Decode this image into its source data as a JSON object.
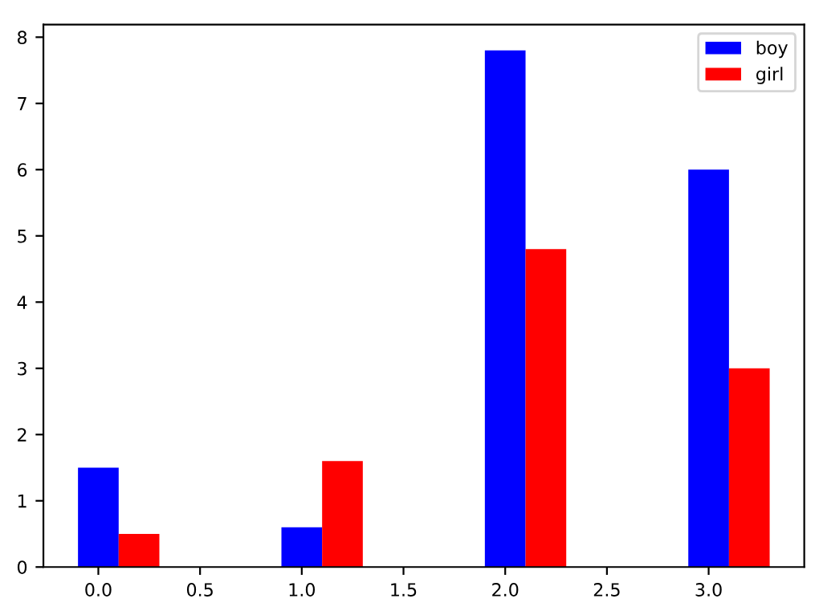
{
  "chart_data": {
    "type": "bar",
    "series": [
      {
        "name": "boy",
        "color": "#0000ff",
        "x": [
          0,
          1,
          2,
          3
        ],
        "values": [
          1.5,
          0.6,
          7.8,
          6
        ]
      },
      {
        "name": "girl",
        "color": "#ff0000",
        "x": [
          0.2,
          1.2,
          2.2,
          3.2
        ],
        "values": [
          0.5,
          1.6,
          4.8,
          3
        ]
      }
    ],
    "xlim": [
      -0.27,
      3.47
    ],
    "xticks": [
      {
        "value": 0,
        "label": "0.0"
      },
      {
        "value": 0.5,
        "label": "0.5"
      },
      {
        "value": 1,
        "label": "1.0"
      },
      {
        "value": 1.5,
        "label": "1.5"
      },
      {
        "value": 2,
        "label": "2.0"
      },
      {
        "value": 2.5,
        "label": "2.5"
      },
      {
        "value": 3,
        "label": "3.0"
      }
    ],
    "ylim": [
      0,
      8.19
    ],
    "yticks": [
      0,
      1,
      2,
      3,
      4,
      5,
      6,
      7,
      8
    ],
    "legend": "top right",
    "grid": false
  }
}
